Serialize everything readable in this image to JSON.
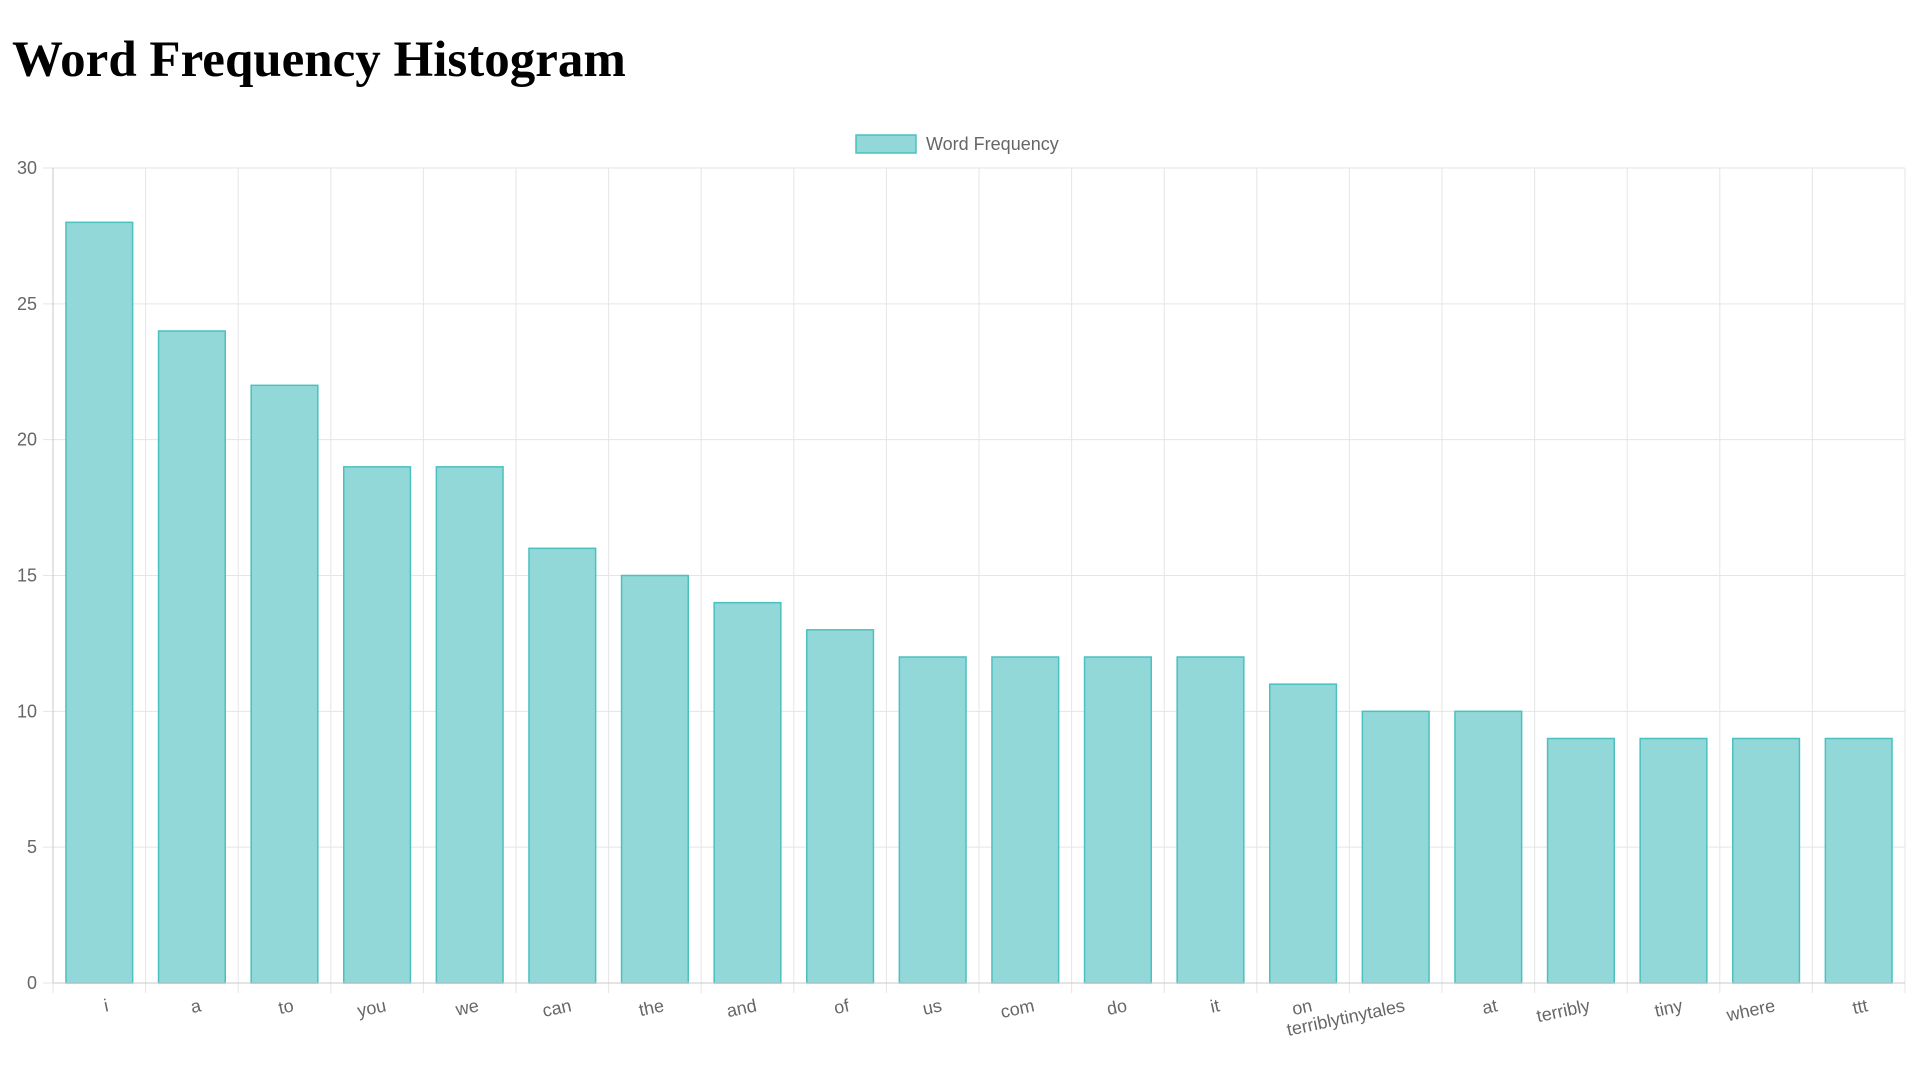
{
  "page": {
    "title": "Word Frequency Histogram"
  },
  "chart_data": {
    "type": "bar",
    "title": "",
    "xlabel": "",
    "ylabel": "",
    "legend": {
      "position": "top",
      "entries": [
        "Word Frequency"
      ]
    },
    "categories": [
      "i",
      "a",
      "to",
      "you",
      "we",
      "can",
      "the",
      "and",
      "of",
      "us",
      "com",
      "do",
      "it",
      "on",
      "terriblytinytales",
      "at",
      "terribly",
      "tiny",
      "where",
      "ttt"
    ],
    "series": [
      {
        "name": "Word Frequency",
        "values": [
          28,
          24,
          22,
          19,
          19,
          16,
          15,
          14,
          13,
          12,
          12,
          12,
          12,
          11,
          10,
          10,
          9,
          9,
          9,
          9
        ]
      }
    ],
    "ylim": [
      0,
      30
    ],
    "yticks": [
      "0",
      "5",
      "10",
      "15",
      "20",
      "25",
      "30"
    ],
    "grid": true,
    "colors": {
      "bar_fill": "#93d8d8",
      "bar_border": "#4bc0c0",
      "grid": "#e5e5e5",
      "axis": "#c8c8c8",
      "tick_text": "#666666"
    }
  }
}
